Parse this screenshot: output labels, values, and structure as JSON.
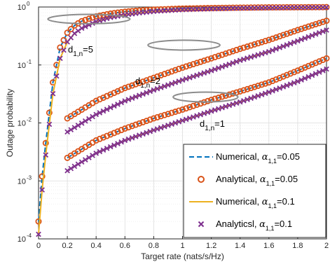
{
  "chart_data": {
    "type": "line",
    "xlabel": "Target rate (nats/s/Hz)",
    "ylabel": "Outage probability",
    "xlim": [
      0,
      2
    ],
    "ylim": [
      0.0001,
      1
    ],
    "yscale": "log",
    "grid": true,
    "legend_position": "bottom-right",
    "x_ticks": [
      "0",
      "0.2",
      "0.4",
      "0.6",
      "0.8",
      "1",
      "1.2",
      "1.4",
      "1.6",
      "1.8",
      "2"
    ],
    "y_ticks": [
      {
        "base": "10",
        "exp": "-4"
      },
      {
        "base": "10",
        "exp": "-3"
      },
      {
        "base": "10",
        "exp": "-2"
      },
      {
        "base": "10",
        "exp": "-1"
      },
      {
        "base": "10",
        "exp": "0"
      }
    ],
    "annotations": [
      {
        "main": "d",
        "sub": "1,n",
        "suffix": "=5"
      },
      {
        "main": "d",
        "sub": "1,n",
        "suffix": "=2"
      },
      {
        "main": "d",
        "sub": "1,n",
        "suffix": "=1"
      }
    ],
    "legend": [
      {
        "label": "Numerical, ",
        "symbol": "α",
        "sub": "1,1",
        "value": "=0.05",
        "style": "dashed",
        "color": "#0072BD"
      },
      {
        "label": "Analytical, ",
        "symbol": "α",
        "sub": "1,1",
        "value": "=0.05",
        "style": "circle",
        "color": "#D95319"
      },
      {
        "label": "Numerical, ",
        "symbol": "α",
        "sub": "1,1",
        "value": "=0.1",
        "style": "solid",
        "color": "#EDB120"
      },
      {
        "label": "Analyticsl, ",
        "symbol": "α",
        "sub": "1,1",
        "value": "=0.1",
        "style": "cross",
        "color": "#7E2F8E"
      }
    ],
    "x_markers": [
      0,
      0.025,
      0.05,
      0.075,
      0.1,
      0.125,
      0.15,
      0.175,
      0.2,
      0.225,
      0.25,
      0.275,
      0.3,
      0.325,
      0.35,
      0.375,
      0.4,
      0.425,
      0.45,
      0.475,
      0.5,
      0.525,
      0.55,
      0.575,
      0.6,
      0.625,
      0.65,
      0.675,
      0.7,
      0.725,
      0.75,
      0.775,
      0.8,
      0.825,
      0.85,
      0.875,
      0.9,
      0.925,
      0.95,
      0.975,
      1,
      1.025,
      1.05,
      1.075,
      1.1,
      1.125,
      1.15,
      1.175,
      1.2,
      1.225,
      1.25,
      1.275,
      1.3,
      1.325,
      1.35,
      1.375,
      1.4,
      1.425,
      1.45,
      1.475,
      1.5,
      1.525,
      1.55,
      1.575,
      1.6,
      1.625,
      1.65,
      1.675,
      1.7,
      1.725,
      1.75,
      1.775,
      1.8,
      1.825,
      1.85,
      1.875,
      1.9,
      1.925,
      1.95,
      1.975,
      2
    ],
    "series": [
      {
        "group": "d=5",
        "alpha": "0.05",
        "kind": "numerical+analytical",
        "points": [
          [
            0,
            0.0002
          ],
          [
            0.025,
            0.0012
          ],
          [
            0.05,
            0.0045
          ],
          [
            0.1,
            0.05
          ],
          [
            0.15,
            0.2
          ],
          [
            0.2,
            0.36
          ],
          [
            0.25,
            0.48
          ],
          [
            0.3,
            0.57
          ],
          [
            0.4,
            0.69
          ],
          [
            0.5,
            0.77
          ],
          [
            0.6,
            0.83
          ],
          [
            0.7,
            0.87
          ],
          [
            0.8,
            0.9
          ],
          [
            1.0,
            0.94
          ],
          [
            1.2,
            0.96
          ],
          [
            1.4,
            0.975
          ],
          [
            1.6,
            0.985
          ],
          [
            1.8,
            0.99
          ],
          [
            2.0,
            0.995
          ]
        ]
      },
      {
        "group": "d=5",
        "alpha": "0.1",
        "kind": "numerical+analytical",
        "points": [
          [
            0,
            0.00012
          ],
          [
            0.025,
            0.0007
          ],
          [
            0.05,
            0.0028
          ],
          [
            0.1,
            0.032
          ],
          [
            0.15,
            0.13
          ],
          [
            0.2,
            0.25
          ],
          [
            0.25,
            0.35
          ],
          [
            0.3,
            0.43
          ],
          [
            0.4,
            0.56
          ],
          [
            0.5,
            0.66
          ],
          [
            0.6,
            0.73
          ],
          [
            0.7,
            0.79
          ],
          [
            0.8,
            0.84
          ],
          [
            1.0,
            0.9
          ],
          [
            1.2,
            0.93
          ],
          [
            1.4,
            0.955
          ],
          [
            1.6,
            0.97
          ],
          [
            1.8,
            0.98
          ],
          [
            2.0,
            0.987
          ]
        ]
      },
      {
        "group": "d=2",
        "alpha": "0.05",
        "kind": "numerical+analytical",
        "points": [
          [
            0.2,
            0.012
          ],
          [
            0.4,
            0.024
          ],
          [
            0.6,
            0.04
          ],
          [
            0.8,
            0.06
          ],
          [
            1.0,
            0.09
          ],
          [
            1.2,
            0.13
          ],
          [
            1.4,
            0.19
          ],
          [
            1.6,
            0.27
          ],
          [
            1.8,
            0.4
          ],
          [
            2.0,
            0.58
          ]
        ]
      },
      {
        "group": "d=2",
        "alpha": "0.1",
        "kind": "numerical+analytical",
        "points": [
          [
            0.2,
            0.007
          ],
          [
            0.4,
            0.014
          ],
          [
            0.6,
            0.024
          ],
          [
            0.8,
            0.037
          ],
          [
            1.0,
            0.055
          ],
          [
            1.2,
            0.08
          ],
          [
            1.4,
            0.12
          ],
          [
            1.6,
            0.17
          ],
          [
            1.8,
            0.26
          ],
          [
            2.0,
            0.4
          ]
        ]
      },
      {
        "group": "d=1",
        "alpha": "0.05",
        "kind": "numerical+analytical",
        "points": [
          [
            0.2,
            0.0025
          ],
          [
            0.4,
            0.005
          ],
          [
            0.6,
            0.008
          ],
          [
            0.8,
            0.012
          ],
          [
            1.0,
            0.017
          ],
          [
            1.2,
            0.025
          ],
          [
            1.4,
            0.035
          ],
          [
            1.6,
            0.05
          ],
          [
            1.8,
            0.08
          ],
          [
            2.0,
            0.13
          ]
        ]
      },
      {
        "group": "d=1",
        "alpha": "0.1",
        "kind": "numerical+analytical",
        "points": [
          [
            0.2,
            0.0015
          ],
          [
            0.4,
            0.003
          ],
          [
            0.6,
            0.005
          ],
          [
            0.8,
            0.0075
          ],
          [
            1.0,
            0.011
          ],
          [
            1.2,
            0.016
          ],
          [
            1.4,
            0.023
          ],
          [
            1.6,
            0.034
          ],
          [
            1.8,
            0.052
          ],
          [
            2.0,
            0.085
          ]
        ]
      }
    ]
  }
}
